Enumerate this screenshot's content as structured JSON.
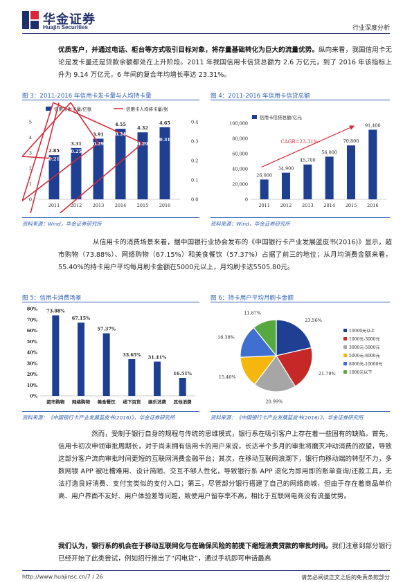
{
  "header": {
    "company_cn": "华金证券",
    "company_en": "Huajin Securities",
    "report_type": "行业深度分析"
  },
  "intro": {
    "bold": "优质客户，并通过电话、柜台等方式吸引目标对象，将存量基础转化为巨大的流量优势。",
    "rest": "纵向来看，我国信用卡无论是发卡量还是贷款余额都处在上升阶段。2011 年我国信用卡信贷总额为 2.6 万亿元，到了 2016 年该指标上升为 9.14 万亿元，6 年间的复合年均增长率达 23.31%。"
  },
  "figures": {
    "fig3": {
      "title": "图 3：2011-2016 年信用卡发卡量与人均持卡量",
      "source": "资料来源：Wind，华金证券研究所"
    },
    "fig4": {
      "title": "图 4：2011-2016 年信用卡信贷总额",
      "source": "资料来源：Wind，华金证券研究所"
    },
    "fig5": {
      "title": "图 5：信用卡消费场景",
      "source": "资料来源：《中国银行卡产业发展蓝皮书(2016)》，华金证券研究所"
    },
    "fig6": {
      "title": "图 6：持卡用户平均月刷卡金额",
      "source": "资料来源：《中国银行卡产业发展蓝皮书(2016)》，华金证券研究所"
    }
  },
  "para2": "从信用卡的消费场景来看，据中国银行业协会发布的《中国银行卡产业发展蓝皮书(2016)》显示，超市购物（73.88%）、网络购物（67.15%）和美食餐饮（57.37%）占据了前三的地位；从月均消费金额来看，55.40%的持卡用户平均每月刷卡金额在5000元以上，月均刷卡达5505.80元。",
  "para3": "然而，受制于银行自身的规程与传统的思维模式，银行系在吸引客户上存在着一些固有的缺陷。首先，信用卡初次申领审批周期长，对于尚未拥有信用卡的用户来说，长达半个多月的审批将磨灭冲动消费的欲望，导致这部分客户流向审批时间更短的互联网消费金融平台；其次，在移动互联网浪潮下，银行向移动端的转型不力，多数网银 APP 被吐槽难用、设计简陋、交互不够人性化，导致银行系 APP 退化为即用即的账单查询/还款工具，无法打造良好消费、支付宝类似的支付入口；第三，尽管部分银行搭建了自己的网络商城，但由于存在着商品单价高、用户界面不友好、用户体验差等问题，致使用户留存率不高，相比于互联网电商没有流量优势。",
  "para4": {
    "bold": "我们认为，银行系的机会在于移动互联网化与在确保风险的前提下缩短消费贷款的审批时间。",
    "rest": "我们注意到部分银行已经开始了此类尝试，例如招行推出了“闪电贷”，通过手机即可申请最高"
  },
  "footer": {
    "url": "http://www.huajinsc.cn/7 / 26",
    "disclaimer": "请务必阅读正文之后的免责条款部分"
  },
  "chart_data": [
    {
      "type": "bar",
      "title": "图 3：2011-2016 年信用卡发卡量与人均持卡量",
      "categories": [
        "2011",
        "2012",
        "2013",
        "2014",
        "2015",
        "2016"
      ],
      "series": [
        {
          "name": "信用卡发卡量/亿张",
          "type": "bar",
          "axis": "left",
          "values": [
            2.85,
            3.31,
            3.91,
            4.55,
            4.32,
            4.65
          ],
          "color": "#1f3f93"
        },
        {
          "name": "信用卡人均持卡量/张",
          "type": "line",
          "axis": "right",
          "values": [
            0.21,
            0.25,
            0.29,
            0.34,
            0.29,
            0.31
          ],
          "color": "#d62a3a"
        }
      ],
      "ylim_left": [
        0,
        5
      ],
      "yticks_left": [
        "0",
        "1",
        "2",
        "3",
        "4",
        "5"
      ],
      "ylim_right": [
        0,
        0.4
      ],
      "yticks_right": [
        "0.0",
        "0.1",
        "0.2",
        "0.3",
        "0.4"
      ],
      "legend": "top"
    },
    {
      "type": "bar",
      "title": "图 4：2011-2016 年信用卡信贷总额",
      "categories": [
        "2011",
        "2012",
        "2013",
        "2014",
        "2015",
        "2016"
      ],
      "series": [
        {
          "name": "信用卡信贷总额/亿元",
          "values": [
            26000,
            34900,
            45700,
            56000,
            70800,
            91400
          ],
          "color": "#1f3f93"
        }
      ],
      "labels": [
        "26,000",
        "34,900",
        "45,700",
        "56,000",
        "70,800",
        "91,400"
      ],
      "ylim": [
        0,
        100000
      ],
      "yticks": [
        "0",
        "20,000",
        "40,000",
        "60,000",
        "80,000",
        "100,000"
      ],
      "annotation": "CAGR=23.31%",
      "legend": "top-left"
    },
    {
      "type": "bar",
      "title": "图 5：信用卡消费场景",
      "categories": [
        "超市购物",
        "网络购物",
        "美食餐饮",
        "线下百货",
        "娱乐消费",
        "其他消费"
      ],
      "values": [
        73.88,
        67.15,
        57.37,
        33.65,
        31.41,
        16.51
      ],
      "labels": [
        "73.88%",
        "67.15%",
        "57.37%",
        "33.65%",
        "31.41%",
        "16.51%"
      ],
      "ylim": [
        0,
        80
      ],
      "yticks": [
        "0%",
        "10%",
        "20%",
        "30%",
        "40%",
        "50%",
        "60%",
        "70%",
        "80%"
      ],
      "color": "#1f3f93"
    },
    {
      "type": "pie",
      "title": "图 6：持卡用户平均月刷卡金额",
      "slices": [
        {
          "name": "10000元以上",
          "value": 23.56,
          "label": "23.56%",
          "color": "#1f3f93"
        },
        {
          "name": "1000元-3000元",
          "value": 21.79,
          "label": "21.79%",
          "color": "#c62828"
        },
        {
          "name": "3000元-5000元",
          "value": 20.99,
          "label": "20.99%",
          "color": "#a6a6a6"
        },
        {
          "name": "5000元-8000元",
          "value": 15.46,
          "label": "15.46%",
          "color": "#f5b60d"
        },
        {
          "name": "8000元-10000元",
          "value": 16.38,
          "label": "16.38%",
          "color": "#3f6fd0"
        },
        {
          "name": "1000元以下",
          "value": 11.87,
          "label": "11.87%",
          "color": "#58a840"
        }
      ],
      "legend": "right"
    }
  ]
}
